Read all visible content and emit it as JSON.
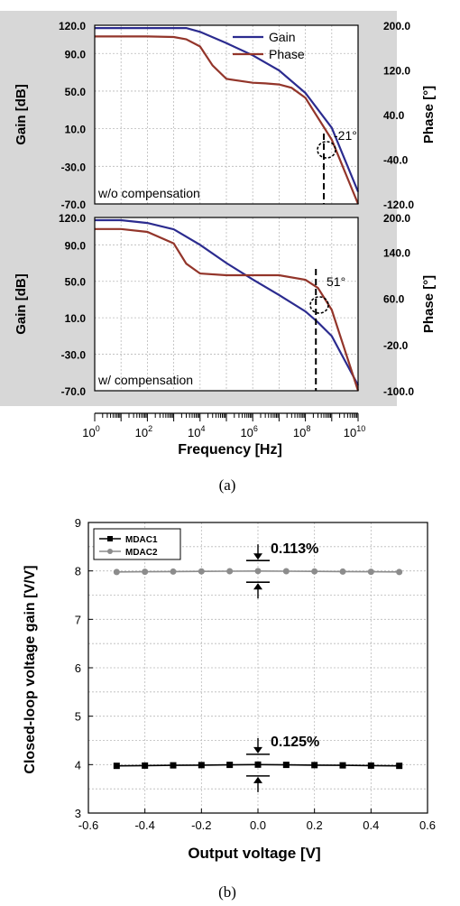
{
  "figure": {
    "label_a": "(a)",
    "label_b": "(b)"
  },
  "chart_data": [
    {
      "type": "line",
      "xlabel": "",
      "ylabel": "Gain [dB]",
      "y2label": "Phase [°]",
      "x_scale": "log",
      "xlim": [
        1,
        10000000000
      ],
      "ylim": [
        -70,
        120
      ],
      "y2lim": [
        -120,
        200
      ],
      "yticks": [
        "120.0",
        "90.0",
        "50.0",
        "10.0",
        "-30.0",
        "-70.0"
      ],
      "y2ticks": [
        "200.0",
        "120.0",
        "40.0",
        "-40.0",
        "-120.0"
      ],
      "legend": [
        "Gain",
        "Phase"
      ],
      "legend_position": "top-right",
      "annotation_text": "w/o compensation",
      "phase_margin_label": "-21°",
      "marker_frequency": 500000000,
      "grid": true,
      "series": [
        {
          "name": "Gain",
          "color": "#2b2b8f",
          "axis": "left",
          "x": [
            1,
            10,
            100,
            1000,
            3000,
            10000,
            100000,
            1000000,
            10000000,
            100000000,
            1000000000,
            10000000000
          ],
          "values": [
            117,
            117,
            117,
            117,
            117,
            113,
            101,
            88,
            72,
            48,
            11,
            -57
          ]
        },
        {
          "name": "Phase",
          "color": "#93352a",
          "axis": "right",
          "x": [
            1,
            10,
            100,
            1000,
            3000,
            10000,
            30000,
            100000,
            1000000,
            3000000,
            10000000,
            30000000,
            100000000,
            1000000000,
            10000000000
          ],
          "values": [
            180,
            180,
            180,
            179,
            175,
            162,
            128,
            104,
            97,
            96,
            94,
            88,
            70,
            -5,
            -120
          ]
        }
      ]
    },
    {
      "type": "line",
      "xlabel": "Frequency [Hz]",
      "ylabel": "Gain [dB]",
      "y2label": "Phase [°]",
      "x_scale": "log",
      "xlim": [
        1,
        10000000000
      ],
      "ylim": [
        -70,
        120
      ],
      "y2lim": [
        -100,
        200
      ],
      "yticks": [
        "120.0",
        "90.0",
        "50.0",
        "10.0",
        "-30.0",
        "-70.0"
      ],
      "y2ticks": [
        "200.0",
        "140.0",
        "60.0",
        "-20.0",
        "-100.0"
      ],
      "xticks": [
        {
          "base": "10",
          "exp": "0"
        },
        {
          "base": "10",
          "exp": "2"
        },
        {
          "base": "10",
          "exp": "4"
        },
        {
          "base": "10",
          "exp": "6"
        },
        {
          "base": "10",
          "exp": "8"
        },
        {
          "base": "10",
          "exp": "10"
        }
      ],
      "annotation_text": "w/ compensation",
      "phase_margin_label": "51°",
      "marker_frequency": 250000000,
      "grid": true,
      "series": [
        {
          "name": "Gain",
          "color": "#2b2b8f",
          "axis": "left",
          "x": [
            1,
            10,
            100,
            1000,
            10000,
            100000,
            1000000,
            10000000,
            100000000,
            300000000,
            1000000000,
            10000000000
          ],
          "values": [
            117,
            117,
            114,
            107,
            90,
            70,
            52,
            35,
            17,
            5,
            -10,
            -64
          ]
        },
        {
          "name": "Phase",
          "color": "#93352a",
          "axis": "right",
          "x": [
            1,
            10,
            100,
            1000,
            3000,
            10000,
            100000,
            1000000,
            10000000,
            100000000,
            300000000,
            1000000000,
            10000000000
          ],
          "values": [
            180,
            180,
            175,
            155,
            120,
            103,
            100,
            100,
            100,
            92,
            78,
            40,
            -100
          ]
        }
      ]
    },
    {
      "type": "line",
      "xlabel": "Output voltage [V]",
      "ylabel": "Closed-loop voltage gain [V/V]",
      "xlim": [
        -0.6,
        0.6
      ],
      "ylim": [
        3,
        9
      ],
      "xticks": [
        "-0.6",
        "-0.4",
        "-0.2",
        "0.0",
        "0.2",
        "0.4",
        "0.6"
      ],
      "yticks": [
        "3",
        "4",
        "5",
        "6",
        "7",
        "8",
        "9"
      ],
      "legend": [
        "MDAC1",
        "MDAC2"
      ],
      "legend_position": "top-left",
      "grid": true,
      "annotations": [
        "0.113%",
        "0.125%"
      ],
      "series": [
        {
          "name": "MDAC1",
          "color": "#000000",
          "marker": "square",
          "x": [
            -0.5,
            -0.4,
            -0.3,
            -0.2,
            -0.1,
            0.0,
            0.1,
            0.2,
            0.3,
            0.4,
            0.5
          ],
          "values": [
            3.975,
            3.98,
            3.985,
            3.99,
            3.995,
            4.0,
            3.995,
            3.99,
            3.985,
            3.98,
            3.975
          ]
        },
        {
          "name": "MDAC2",
          "color": "#8c8c8c",
          "marker": "circle",
          "x": [
            -0.5,
            -0.4,
            -0.3,
            -0.2,
            -0.1,
            0.0,
            0.1,
            0.2,
            0.3,
            0.4,
            0.5
          ],
          "values": [
            7.978,
            7.982,
            7.986,
            7.99,
            7.994,
            7.997,
            7.994,
            7.99,
            7.986,
            7.982,
            7.978
          ]
        }
      ]
    }
  ]
}
